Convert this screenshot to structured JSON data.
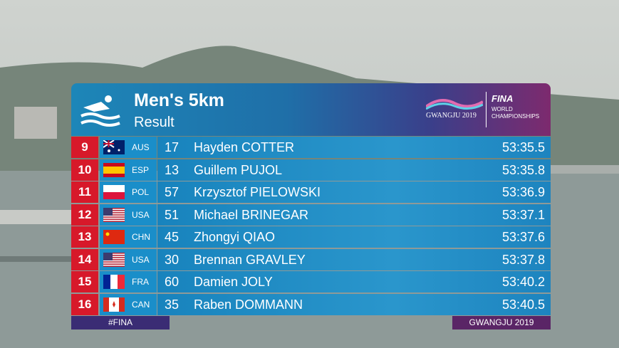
{
  "header": {
    "title": "Men's 5km",
    "subtitle": "Result",
    "event_logo": "GWANGJU 2019",
    "fina_logo": "FINA",
    "fina_sub": "WORLD CHAMPIONSHIPS"
  },
  "table": {
    "rows": [
      [
        "9",
        "AUS",
        "17",
        "Hayden COTTER",
        "53:35.5"
      ],
      [
        "10",
        "ESP",
        "13",
        "Guillem PUJOL",
        "53:35.8"
      ],
      [
        "11",
        "POL",
        "57",
        "Krzysztof PIELOWSKI",
        "53:36.9"
      ],
      [
        "12",
        "USA",
        "51",
        "Michael BRINEGAR",
        "53:37.1"
      ],
      [
        "13",
        "CHN",
        "45",
        "Zhongyi QIAO",
        "53:37.6"
      ],
      [
        "14",
        "USA",
        "30",
        "Brennan GRAVLEY",
        "53:37.8"
      ],
      [
        "15",
        "FRA",
        "60",
        "Damien JOLY",
        "53:40.2"
      ],
      [
        "16",
        "CAN",
        "35",
        "Raben DOMMANN",
        "53:40.5"
      ]
    ]
  },
  "footer": {
    "left": "#FINA",
    "right": "GWANGJU 2019"
  }
}
